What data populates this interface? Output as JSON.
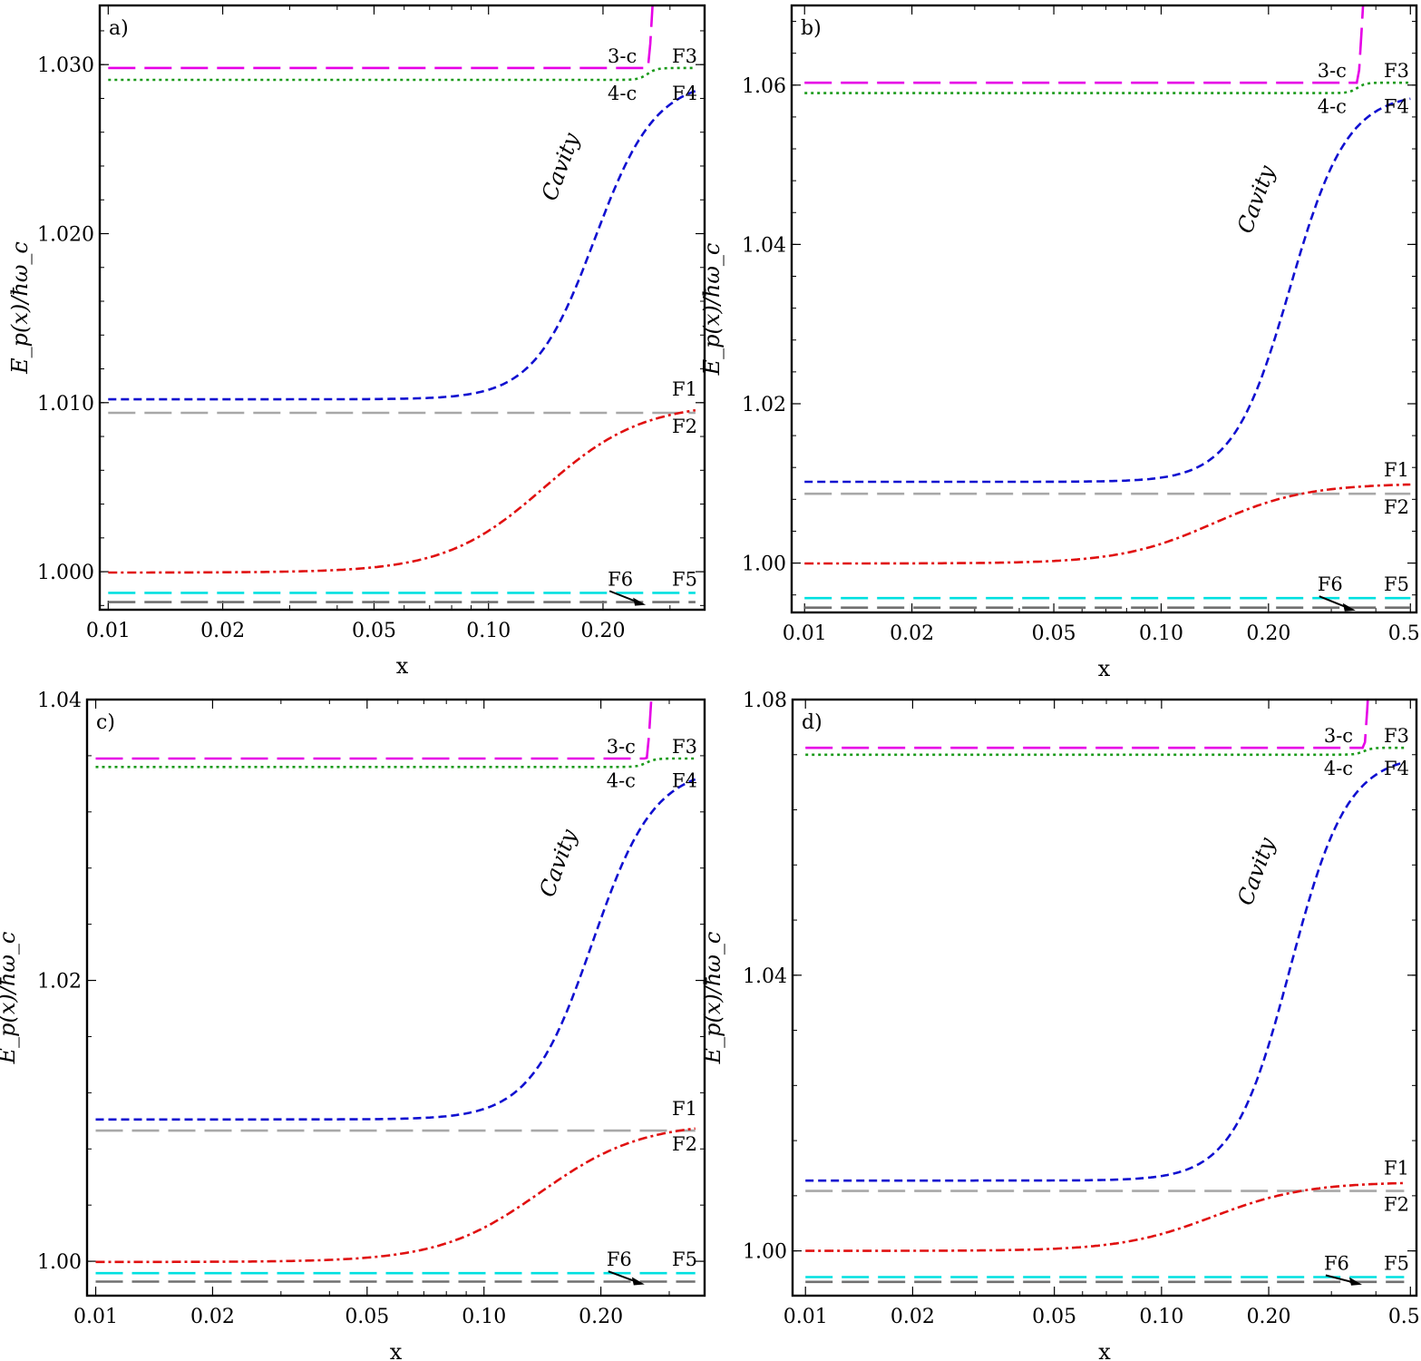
{
  "figure": {
    "xlabel": "x",
    "ylabel": "E_p(x)/ħω_c"
  },
  "chart_data": [
    {
      "type": "line",
      "panel_label": "a)",
      "xlabel": "x",
      "ylabel": "E_p(x)/ħω_c",
      "xscale": "log",
      "xlim": [
        0.0095,
        0.37
      ],
      "ylim": [
        0.99775,
        1.0335
      ],
      "xticks": [
        0.01,
        0.02,
        0.05,
        0.1,
        0.2
      ],
      "xtick_labels": [
        "0.01",
        "0.02",
        "0.05",
        "0.10",
        "0.20"
      ],
      "yticks": [
        1.0,
        1.01,
        1.02,
        1.03
      ],
      "ytick_labels": [
        "1.000",
        "1.010",
        "1.020",
        "1.030"
      ],
      "params": {
        "xmax": 0.35,
        "x0": 0.14,
        "xmid_cav": 0.19,
        "xc": 0.262,
        "curve_top": 1.05
      },
      "series": [
        {
          "name": "3-c",
          "label": "3-c",
          "color": "#e600e6",
          "style": "long-dash",
          "flat": 1.0298,
          "end": 1.0298
        },
        {
          "name": "F3",
          "label": "F3",
          "color": "#1a9a1a",
          "style": "dotted",
          "flat": 1.0291,
          "end": 1.0298
        },
        {
          "name": "4-c / F4 / Cavity",
          "label": "4-c",
          "label_end": "F4",
          "label_mid": "Cavity",
          "color": "#1010d0",
          "style": "dashed",
          "flat": 1.0102,
          "end": 1.0291
        },
        {
          "name": "F1",
          "label": "F1",
          "color": "#e01010",
          "style": "dash-dot",
          "flat": 0.99995,
          "end": 1.01
        },
        {
          "name": "F2",
          "label": "F2",
          "color": "#a8a8a8",
          "style": "long-dash",
          "flat": 1.0094,
          "end": 1.0094
        },
        {
          "name": "F5",
          "label": "F5",
          "color": "#00e0e0",
          "style": "long-dash",
          "flat": 0.99875,
          "end": 0.99875
        },
        {
          "name": "F6",
          "label": "F6",
          "color": "#707070",
          "style": "long-dash",
          "flat": 0.9982,
          "end": 0.9982
        }
      ]
    },
    {
      "type": "line",
      "panel_label": "b)",
      "xlabel": "x",
      "ylabel": "E_p(x)/ħω_c",
      "xscale": "log",
      "xlim": [
        0.0092,
        0.52
      ],
      "ylim": [
        0.9938,
        1.07
      ],
      "xticks": [
        0.01,
        0.02,
        0.05,
        0.1,
        0.2,
        0.5
      ],
      "xtick_labels": [
        "0.01",
        "0.02",
        "0.05",
        "0.10",
        "0.20",
        "0.50"
      ],
      "yticks": [
        1.0,
        1.02,
        1.04,
        1.06
      ],
      "ytick_labels": [
        "1.00",
        "1.02",
        "1.04",
        "1.06"
      ],
      "params": {
        "xmax": 0.5,
        "x0": 0.14,
        "xmid_cav": 0.23,
        "xc": 0.355,
        "curve_top": 1.1
      },
      "series": [
        {
          "name": "3-c",
          "label": "3-c",
          "color": "#e600e6",
          "style": "long-dash",
          "flat": 1.0603,
          "end": 1.0603
        },
        {
          "name": "F3",
          "label": "F3",
          "color": "#1a9a1a",
          "style": "dotted",
          "flat": 1.059,
          "end": 1.0603
        },
        {
          "name": "4-c / F4 / Cavity",
          "label": "4-c",
          "label_end": "F4",
          "label_mid": "Cavity",
          "color": "#1010d0",
          "style": "dashed",
          "flat": 1.0102,
          "end": 1.059
        },
        {
          "name": "F1",
          "label": "F1",
          "color": "#e01010",
          "style": "dash-dot",
          "flat": 0.99995,
          "end": 1.01
        },
        {
          "name": "F2",
          "label": "F2",
          "color": "#a8a8a8",
          "style": "long-dash",
          "flat": 1.0087,
          "end": 1.0087
        },
        {
          "name": "F5",
          "label": "F5",
          "color": "#00e0e0",
          "style": "long-dash",
          "flat": 0.9956,
          "end": 0.9956
        },
        {
          "name": "F6",
          "label": "F6",
          "color": "#707070",
          "style": "long-dash",
          "flat": 0.9944,
          "end": 0.9944
        }
      ]
    },
    {
      "type": "line",
      "panel_label": "c)",
      "xlabel": "x",
      "ylabel": "E_p(x)/ħω_c",
      "xscale": "log",
      "xlim": [
        0.0095,
        0.37
      ],
      "ylim": [
        0.99755,
        1.04
      ],
      "xticks": [
        0.01,
        0.02,
        0.05,
        0.1,
        0.2
      ],
      "xtick_labels": [
        "0.01",
        "0.02",
        "0.05",
        "0.10",
        "0.20"
      ],
      "yticks": [
        1.0,
        1.02,
        1.04
      ],
      "ytick_labels": [
        "1.00",
        "1.02",
        "1.04"
      ],
      "params": {
        "xmax": 0.35,
        "x0": 0.14,
        "xmid_cav": 0.19,
        "xc": 0.262,
        "curve_top": 1.06
      },
      "series": [
        {
          "name": "3-c",
          "label": "3-c",
          "color": "#e600e6",
          "style": "long-dash",
          "flat": 1.0358,
          "end": 1.0358
        },
        {
          "name": "F3",
          "label": "F3",
          "color": "#1a9a1a",
          "style": "dotted",
          "flat": 1.0352,
          "end": 1.0358
        },
        {
          "name": "4-c / F4 / Cavity",
          "label": "4-c",
          "label_end": "F4",
          "label_mid": "Cavity",
          "color": "#1010d0",
          "style": "dashed",
          "flat": 1.0101,
          "end": 1.0352
        },
        {
          "name": "F1",
          "label": "F1",
          "color": "#e01010",
          "style": "dash-dot",
          "flat": 0.99995,
          "end": 1.0099
        },
        {
          "name": "F2",
          "label": "F2",
          "color": "#a8a8a8",
          "style": "long-dash",
          "flat": 1.0093,
          "end": 1.0093
        },
        {
          "name": "F5",
          "label": "F5",
          "color": "#00e0e0",
          "style": "long-dash",
          "flat": 0.99915,
          "end": 0.99915
        },
        {
          "name": "F6",
          "label": "F6",
          "color": "#707070",
          "style": "long-dash",
          "flat": 0.99855,
          "end": 0.99855
        }
      ]
    },
    {
      "type": "line",
      "panel_label": "d)",
      "xlabel": "x",
      "ylabel": "E_p(x)/ħω_c",
      "xscale": "log",
      "xlim": [
        0.0092,
        0.52
      ],
      "ylim": [
        0.9935,
        1.08
      ],
      "xticks": [
        0.01,
        0.02,
        0.05,
        0.1,
        0.2,
        0.5
      ],
      "xtick_labels": [
        "0.01",
        "0.02",
        "0.05",
        "0.10",
        "0.20",
        "0.50"
      ],
      "yticks": [
        1.0,
        1.04,
        1.08
      ],
      "ytick_labels": [
        "1.00",
        "1.04",
        "1.08"
      ],
      "params": {
        "xmax": 0.48,
        "x0": 0.14,
        "xmid_cav": 0.23,
        "xc": 0.37,
        "curve_top": 1.12
      },
      "series": [
        {
          "name": "3-c",
          "label": "3-c",
          "color": "#e600e6",
          "style": "long-dash",
          "flat": 1.073,
          "end": 1.073
        },
        {
          "name": "F3",
          "label": "F3",
          "color": "#1a9a1a",
          "style": "dotted",
          "flat": 1.072,
          "end": 1.073
        },
        {
          "name": "4-c / F4 / Cavity",
          "label": "4-c",
          "label_end": "F4",
          "label_mid": "Cavity",
          "color": "#1010d0",
          "style": "dashed",
          "flat": 1.0102,
          "end": 1.072
        },
        {
          "name": "F1",
          "label": "F1",
          "color": "#e01010",
          "style": "dash-dot",
          "flat": 1.0,
          "end": 1.01
        },
        {
          "name": "F2",
          "label": "F2",
          "color": "#a8a8a8",
          "style": "long-dash",
          "flat": 1.0087,
          "end": 1.0087
        },
        {
          "name": "F5",
          "label": "F5",
          "color": "#00e0e0",
          "style": "long-dash",
          "flat": 0.9962,
          "end": 0.9962
        },
        {
          "name": "F6",
          "label": "F6",
          "color": "#707070",
          "style": "long-dash",
          "flat": 0.9955,
          "end": 0.9955
        }
      ]
    }
  ]
}
